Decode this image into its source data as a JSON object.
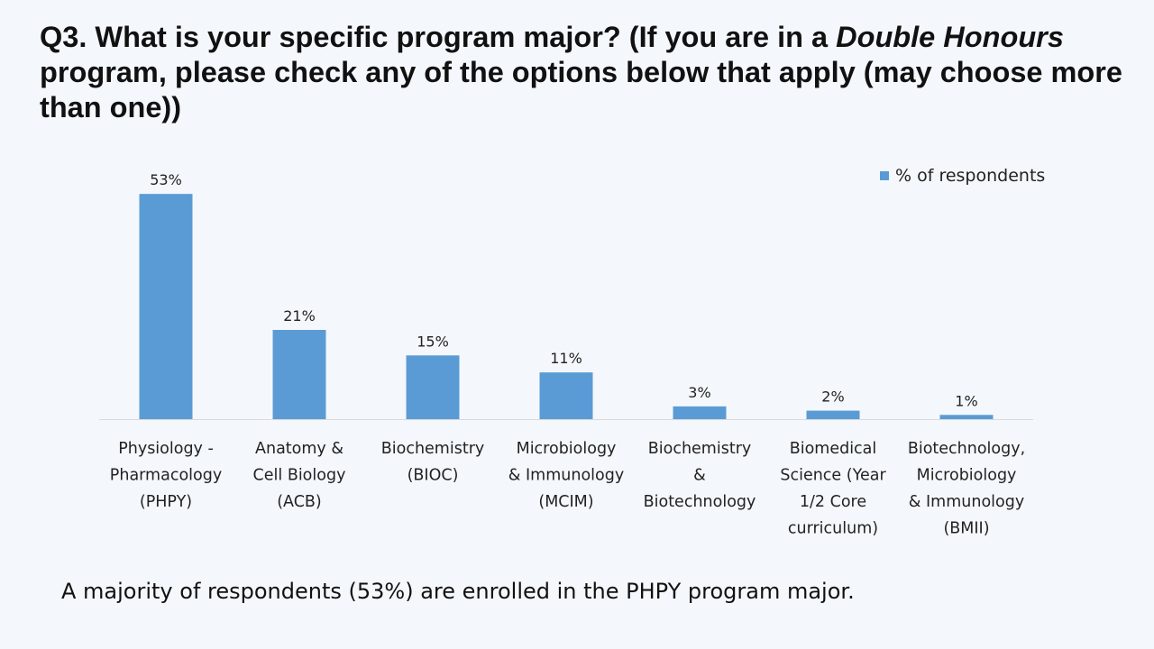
{
  "slide": {
    "title_part1": "Q3. What is your specific program major? (If you are in a ",
    "title_em1": "Double Honours",
    "title_part2": " program, please check any of the options below that apply (may choose more than one))",
    "footnote": "A majority of respondents (53%) are enrolled in the PHPY program major."
  },
  "chart_data": {
    "type": "bar",
    "categories": [
      "Physiology - Pharmacology (PHPY)",
      "Anatomy & Cell Biology (ACB)",
      "Biochemistry (BIOC)",
      "Microbiology & Immunology (MCIM)",
      "Biochemistry & Biotechnology",
      "Biomedical Science (Year 1/2 Core curriculum)",
      "Biotechnology, Microbiology & Immunology (BMII)"
    ],
    "category_lines": [
      [
        "Physiology -",
        "Pharmacology",
        "(PHPY)"
      ],
      [
        "Anatomy &",
        "Cell Biology",
        "(ACB)"
      ],
      [
        "Biochemistry",
        "(BIOC)"
      ],
      [
        "Microbiology",
        "& Immunology",
        "(MCIM)"
      ],
      [
        "Biochemistry",
        "&",
        "Biotechnology"
      ],
      [
        "Biomedical",
        "Science (Year",
        "1/2 Core",
        "curriculum)"
      ],
      [
        "Biotechnology,",
        "Microbiology",
        "& Immunology",
        "(BMII)"
      ]
    ],
    "series": [
      {
        "name": "% of respondents",
        "values": [
          53,
          21,
          15,
          11,
          3,
          2,
          1
        ]
      }
    ],
    "data_labels": [
      "53%",
      "21%",
      "15%",
      "11%",
      "3%",
      "2%",
      "1%"
    ],
    "ylim": [
      0,
      56
    ],
    "grid": false,
    "legend_position": "top-right",
    "bar_color": "#5b9bd5",
    "axis_color": "#d9d9d9"
  }
}
